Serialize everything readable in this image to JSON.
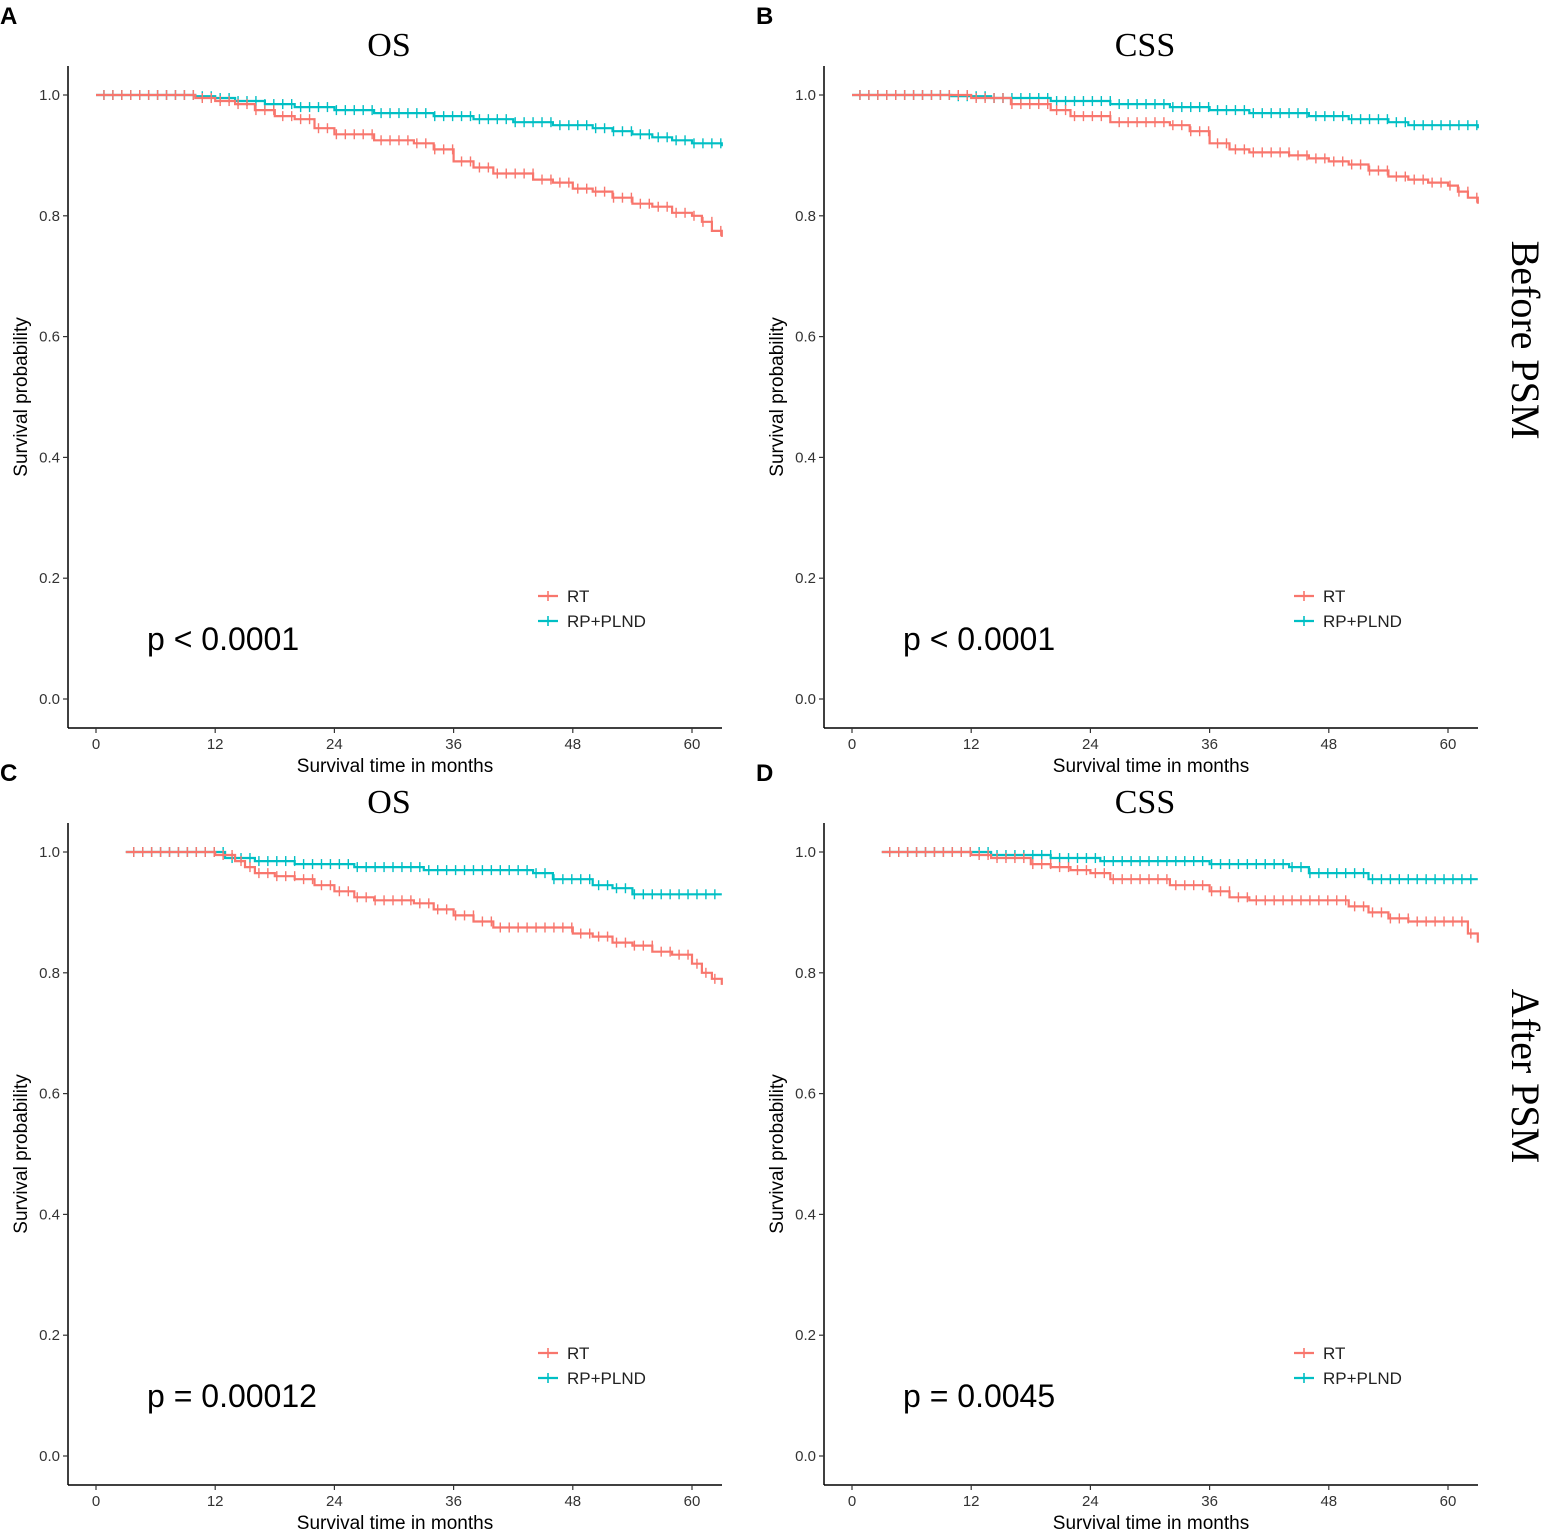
{
  "row_labels": [
    "Before PSM",
    "After PSM"
  ],
  "colors": {
    "RT": "#F8766D",
    "RP+PLND": "#00BFC4",
    "axis": "#000000"
  },
  "chart_data": [
    {
      "panel": "A",
      "type": "line",
      "title": "OS",
      "xlabel": "Survival time in months",
      "ylabel": "Survival probability",
      "xlim": [
        0,
        63
      ],
      "ylim": [
        0,
        1.0
      ],
      "xticks": [
        0,
        12,
        24,
        36,
        48,
        60
      ],
      "yticks": [
        0.0,
        0.2,
        0.4,
        0.6,
        0.8,
        1.0
      ],
      "pvalue": "p < 0.0001",
      "legend": [
        "RT",
        "RP+PLND"
      ],
      "series": [
        {
          "name": "RT",
          "start": 0,
          "x": [
            10,
            12,
            14,
            16,
            18,
            20,
            22,
            24,
            28,
            32,
            34,
            36,
            38,
            40,
            44,
            46,
            48,
            50,
            52,
            54,
            56,
            58,
            60,
            61,
            62,
            63
          ],
          "values": [
            0.995,
            0.99,
            0.985,
            0.975,
            0.965,
            0.96,
            0.945,
            0.935,
            0.925,
            0.92,
            0.91,
            0.89,
            0.88,
            0.87,
            0.86,
            0.855,
            0.845,
            0.84,
            0.83,
            0.82,
            0.815,
            0.805,
            0.8,
            0.79,
            0.775,
            0.765
          ]
        },
        {
          "name": "RP+PLND",
          "start": 0,
          "x": [
            10,
            12,
            14,
            17,
            20,
            24,
            28,
            34,
            38,
            42,
            46,
            50,
            52,
            54,
            56,
            58,
            60,
            63
          ],
          "values": [
            0.998,
            0.995,
            0.99,
            0.985,
            0.98,
            0.975,
            0.97,
            0.965,
            0.96,
            0.955,
            0.95,
            0.945,
            0.94,
            0.935,
            0.93,
            0.925,
            0.92,
            0.915
          ]
        }
      ]
    },
    {
      "panel": "B",
      "type": "line",
      "title": "CSS",
      "xlabel": "Survival time in months",
      "ylabel": "Survival probability",
      "xlim": [
        0,
        63
      ],
      "ylim": [
        0,
        1.0
      ],
      "xticks": [
        0,
        12,
        24,
        36,
        48,
        60
      ],
      "yticks": [
        0.0,
        0.2,
        0.4,
        0.6,
        0.8,
        1.0
      ],
      "pvalue": "p < 0.0001",
      "legend": [
        "RT",
        "RP+PLND"
      ],
      "series": [
        {
          "name": "RT",
          "start": 0,
          "x": [
            12,
            16,
            20,
            22,
            26,
            32,
            34,
            36,
            38,
            40,
            44,
            46,
            48,
            50,
            52,
            54,
            56,
            58,
            60,
            61,
            62,
            63
          ],
          "values": [
            0.995,
            0.985,
            0.975,
            0.965,
            0.955,
            0.95,
            0.94,
            0.92,
            0.91,
            0.905,
            0.9,
            0.895,
            0.89,
            0.885,
            0.875,
            0.865,
            0.86,
            0.855,
            0.85,
            0.84,
            0.83,
            0.82
          ]
        },
        {
          "name": "RP+PLND",
          "start": 0,
          "x": [
            10,
            14,
            20,
            26,
            32,
            36,
            40,
            46,
            50,
            54,
            56,
            63
          ],
          "values": [
            0.998,
            0.995,
            0.99,
            0.985,
            0.98,
            0.975,
            0.97,
            0.965,
            0.96,
            0.955,
            0.95,
            0.945
          ]
        }
      ]
    },
    {
      "panel": "C",
      "type": "line",
      "title": "OS",
      "xlabel": "Survival time in months",
      "ylabel": "Survival probability",
      "xlim": [
        0,
        63
      ],
      "ylim": [
        0,
        1.0
      ],
      "xticks": [
        0,
        12,
        24,
        36,
        48,
        60
      ],
      "yticks": [
        0.0,
        0.2,
        0.4,
        0.6,
        0.8,
        1.0
      ],
      "pvalue": "p = 0.00012",
      "legend": [
        "RT",
        "RP+PLND"
      ],
      "series": [
        {
          "name": "RT",
          "start": 3,
          "x": [
            12,
            14,
            15,
            16,
            18,
            20,
            22,
            24,
            26,
            28,
            32,
            34,
            36,
            38,
            40,
            48,
            50,
            52,
            54,
            56,
            58,
            60,
            61,
            62,
            63
          ],
          "values": [
            0.995,
            0.985,
            0.975,
            0.965,
            0.96,
            0.955,
            0.945,
            0.935,
            0.925,
            0.92,
            0.915,
            0.905,
            0.895,
            0.885,
            0.875,
            0.865,
            0.86,
            0.85,
            0.845,
            0.835,
            0.83,
            0.815,
            0.8,
            0.79,
            0.78
          ]
        },
        {
          "name": "RP+PLND",
          "start": 3,
          "x": [
            13,
            16,
            20,
            26,
            33,
            44,
            46,
            50,
            52,
            54,
            63
          ],
          "values": [
            0.99,
            0.985,
            0.98,
            0.975,
            0.97,
            0.965,
            0.955,
            0.945,
            0.94,
            0.93,
            0.93
          ]
        }
      ]
    },
    {
      "panel": "D",
      "type": "line",
      "title": "CSS",
      "xlabel": "Survival time in months",
      "ylabel": "Survival probability",
      "xlim": [
        0,
        63
      ],
      "ylim": [
        0,
        1.0
      ],
      "xticks": [
        0,
        12,
        24,
        36,
        48,
        60
      ],
      "yticks": [
        0.0,
        0.2,
        0.4,
        0.6,
        0.8,
        1.0
      ],
      "pvalue": "p = 0.0045",
      "legend": [
        "RT",
        "RP+PLND"
      ],
      "series": [
        {
          "name": "RT",
          "start": 3,
          "x": [
            12,
            14,
            18,
            20,
            22,
            24,
            26,
            32,
            36,
            38,
            40,
            50,
            52,
            54,
            56,
            62,
            63
          ],
          "values": [
            0.995,
            0.99,
            0.98,
            0.975,
            0.97,
            0.965,
            0.955,
            0.945,
            0.935,
            0.925,
            0.92,
            0.91,
            0.9,
            0.89,
            0.885,
            0.865,
            0.85
          ]
        },
        {
          "name": "RP+PLND",
          "start": 3,
          "x": [
            14,
            20,
            25,
            36,
            44,
            46,
            52,
            63
          ],
          "values": [
            0.995,
            0.99,
            0.985,
            0.98,
            0.975,
            0.965,
            0.955,
            0.955
          ]
        }
      ]
    }
  ]
}
